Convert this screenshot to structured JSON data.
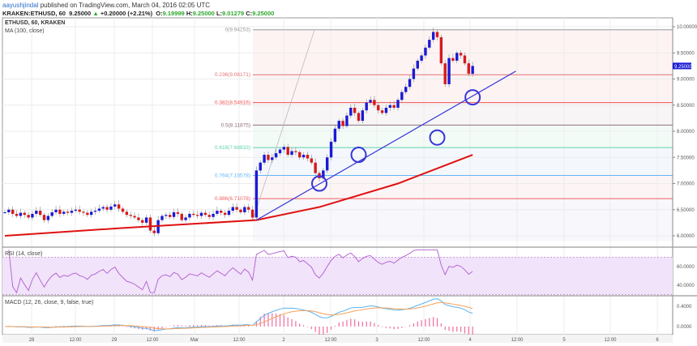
{
  "header": {
    "author": "aayushjindal",
    "published": "published on TradingView.com, March 04, 2016 02:05 UTC",
    "symbol": "KRAKEN:ETHUSD, 60",
    "last": "9.25000",
    "change": "+0.20000 (+2.21%)",
    "o_label": "O:",
    "o": "9.19999",
    "h_label": "H:",
    "h": "9.25000",
    "l_label": "L:",
    "l": "9.01279",
    "c_label": "C:",
    "c": "9.25000"
  },
  "main_pane": {
    "title": "ETHUSD, 60, KRAKEN",
    "ma_label": "MA (100, close)",
    "current_price_tag": "9.25000",
    "price_ticks": [
      "10.00000",
      "9.50000",
      "9.00000",
      "8.50000",
      "8.00000",
      "7.50000",
      "7.00000",
      "6.50000",
      "6.00000"
    ],
    "fib_levels": [
      {
        "label": "0(9.94253)",
        "price": 9.94253,
        "color": "#999999"
      },
      {
        "label": "0.236(9.08171)",
        "price": 9.08171,
        "color": "#e57373"
      },
      {
        "label": "0.382(8.54916)",
        "price": 8.54916,
        "color": "#ef5350"
      },
      {
        "label": "0.5(8.11875)",
        "price": 8.11875,
        "color": "#8d6e7e"
      },
      {
        "label": "0.618(7.68833)",
        "price": 7.68833,
        "color": "#5fd3a8"
      },
      {
        "label": "0.764(7.15578)",
        "price": 7.15578,
        "color": "#64b5f6"
      },
      {
        "label": "0.886(6.71078)",
        "price": 6.71078,
        "color": "#f06060"
      }
    ]
  },
  "rsi_pane": {
    "label": "RSI (14, close)",
    "ticks": [
      "60.0000",
      "40.0000"
    ]
  },
  "macd_pane": {
    "label": "MACD (12, 26, close, 9, false, true)",
    "ticks": [
      "0.4000",
      "0.0000"
    ]
  },
  "time_axis": [
    "28",
    "12:00",
    "29",
    "12:00",
    "Mar",
    "12:00",
    "2",
    "12:00",
    "3",
    "12:00",
    "4",
    "12:00",
    "5",
    "12:00",
    "6"
  ],
  "colors": {
    "up": "#1a1ad6",
    "down": "#d61a1a",
    "ma": "#e01010",
    "trend": "#3535d8",
    "rsi": "#b05ad0",
    "macd": "#5ab4f0",
    "signal": "#f5a05a",
    "hist": "#f06ca0"
  },
  "chart_data": {
    "type": "candlestick",
    "interval": "60",
    "closes": [
      6.45,
      6.5,
      6.42,
      6.38,
      6.44,
      6.4,
      6.35,
      6.42,
      6.48,
      6.4,
      6.3,
      6.38,
      6.45,
      6.5,
      6.42,
      6.46,
      6.44,
      6.48,
      6.5,
      6.46,
      6.44,
      6.4,
      6.46,
      6.48,
      6.52,
      6.55,
      6.5,
      6.56,
      6.6,
      6.52,
      6.46,
      6.4,
      6.38,
      6.35,
      6.3,
      6.25,
      6.35,
      6.1,
      6.05,
      6.3,
      6.38,
      6.4,
      6.36,
      6.45,
      6.42,
      6.3,
      6.35,
      6.42,
      6.4,
      6.38,
      6.44,
      6.4,
      6.36,
      6.42,
      6.48,
      6.44,
      6.4,
      6.48,
      6.55,
      6.5,
      6.45,
      6.55,
      6.5,
      6.35,
      7.25,
      7.4,
      7.55,
      7.45,
      7.5,
      7.58,
      7.65,
      7.7,
      7.55,
      7.62,
      7.6,
      7.5,
      7.55,
      7.48,
      7.4,
      7.2,
      7.1,
      7.25,
      7.5,
      7.8,
      8.05,
      8.2,
      8.1,
      8.3,
      8.45,
      8.35,
      8.2,
      8.4,
      8.55,
      8.6,
      8.5,
      8.4,
      8.35,
      8.45,
      8.5,
      8.45,
      8.6,
      8.75,
      8.85,
      9.0,
      9.2,
      9.35,
      9.45,
      9.6,
      9.75,
      9.9,
      9.8,
      9.3,
      8.9,
      9.4,
      9.35,
      9.5,
      9.45,
      9.3,
      9.1,
      9.25
    ],
    "ma100": [
      [
        0,
        6.0
      ],
      [
        30,
        6.15
      ],
      [
        64,
        6.3
      ],
      [
        80,
        6.55
      ],
      [
        100,
        7.0
      ],
      [
        119,
        7.55
      ]
    ],
    "trendline": [
      [
        64,
        6.3
      ],
      [
        130,
        9.15
      ]
    ],
    "support_touches": [
      [
        80,
        7.0
      ],
      [
        90,
        7.55
      ],
      [
        110,
        7.88
      ],
      [
        119,
        8.65
      ]
    ],
    "ylim": [
      5.9,
      10.2
    ]
  }
}
